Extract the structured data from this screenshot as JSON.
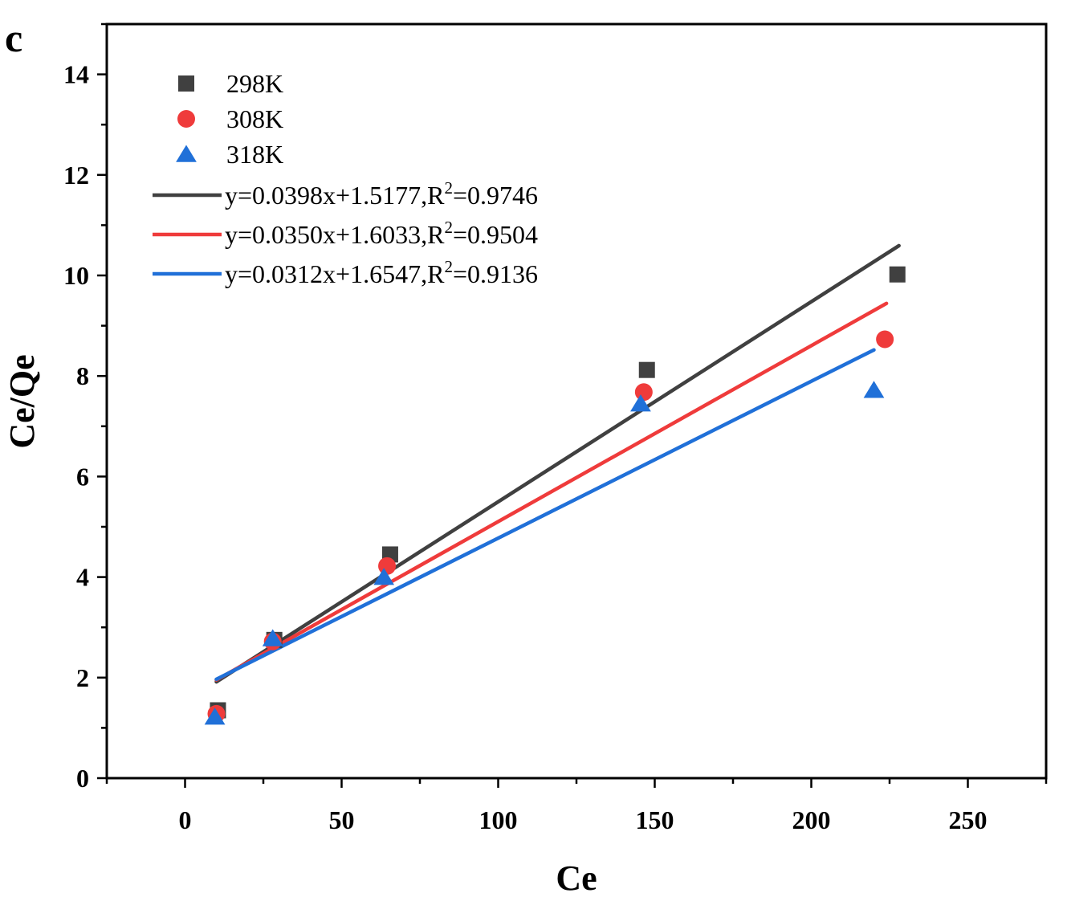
{
  "chart_data": {
    "type": "scatter",
    "panel_label": "c",
    "xlabel": "Ce",
    "ylabel": "Ce/Qe",
    "xlim": [
      -25,
      275
    ],
    "ylim": [
      0,
      15
    ],
    "xticks": [
      0,
      50,
      100,
      150,
      200,
      250
    ],
    "yticks": [
      0,
      2,
      4,
      6,
      8,
      10,
      12,
      14
    ],
    "legend_position": "top-left",
    "series": [
      {
        "name": "298K",
        "marker": "square",
        "color": "#404040",
        "x": [
          10.5,
          28.5,
          65.5,
          147.5,
          227.5
        ],
        "y": [
          1.35,
          2.75,
          4.45,
          8.12,
          10.02
        ]
      },
      {
        "name": "308K",
        "marker": "circle",
        "color": "#ef3b3b",
        "x": [
          10,
          28,
          64.5,
          146.5,
          223.5
        ],
        "y": [
          1.28,
          2.72,
          4.22,
          7.68,
          8.73
        ]
      },
      {
        "name": "318K",
        "marker": "triangle",
        "color": "#2070d8",
        "x": [
          9.5,
          28,
          63.5,
          145.5,
          220
        ],
        "y": [
          1.22,
          2.78,
          4.0,
          7.45,
          7.72
        ]
      }
    ],
    "fits": [
      {
        "label": "y=0.0398x+1.5177,R",
        "sup": "2",
        "tail": "=0.9746",
        "color": "#404040",
        "slope": 0.0398,
        "intercept": 1.5177,
        "x_range": [
          10,
          228
        ]
      },
      {
        "label": "y=0.0350x+1.6033,R",
        "sup": "2",
        "tail": "=0.9504",
        "color": "#ef3b3b",
        "slope": 0.035,
        "intercept": 1.6033,
        "x_range": [
          10,
          224
        ]
      },
      {
        "label": "y=0.0312x+1.6547,R",
        "sup": "2",
        "tail": "=0.9136",
        "color": "#2070d8",
        "slope": 0.0312,
        "intercept": 1.6547,
        "x_range": [
          10,
          220
        ]
      }
    ]
  }
}
